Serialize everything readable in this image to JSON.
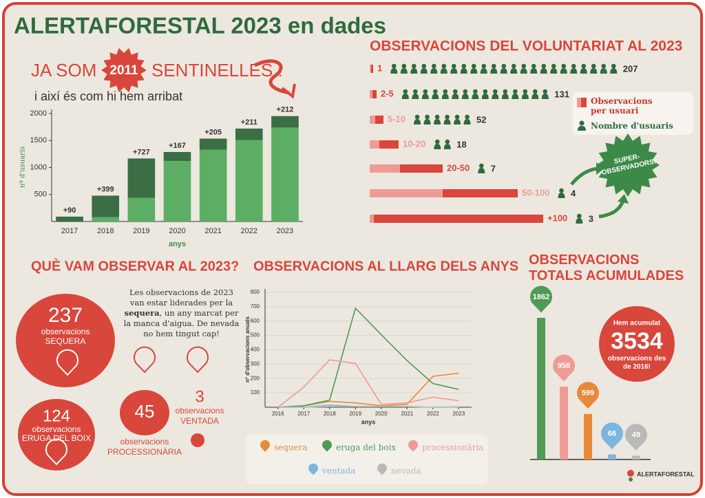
{
  "title": "ALERTAFORESTAL 2023 en dades",
  "headline": {
    "prefix": "JA SOM",
    "count": 2011,
    "suffix": "SENTINELLES !",
    "subtitle": "i així és com hi hem arribat"
  },
  "observed_2023": {
    "title": "QUÈ VAM OBSERVAR AL 2023?",
    "note": [
      "Les observacions de 2023 van estar liderades per la ",
      "sequera",
      ", un any marcat per la manca d'aigua. De nevada no hem tingut cap!"
    ],
    "items": [
      {
        "value": 237,
        "unit": "observacions",
        "label": "SEQUERA"
      },
      {
        "value": 124,
        "unit": "observacions",
        "label": "ERUGA DEL BOIX"
      },
      {
        "value": 45,
        "unit": "observacions",
        "label": "PROCESSIONÀRIA"
      },
      {
        "value": 3,
        "unit": "observacions",
        "label": "VENTADA"
      }
    ]
  },
  "footer": {
    "logo": "ALERTAFORESTAL"
  },
  "chart_data": [
    {
      "type": "stacked_bar",
      "categories": [
        "2017",
        "2018",
        "2019",
        "2020",
        "2021",
        "2022",
        "2023"
      ],
      "series": [
        {
          "color": "#5cae64",
          "values": [
            0,
            80,
            440,
            1120,
            1330,
            1510,
            1740
          ]
        },
        {
          "color": "#3b6e44",
          "values": [
            90,
            399,
            727,
            167,
            205,
            211,
            212
          ],
          "value_labels": [
            "+90",
            "+399",
            "+727",
            "+167",
            "+205",
            "+211",
            "+212"
          ]
        }
      ],
      "ylim": [
        0,
        2000
      ],
      "yticks": [
        500,
        1000,
        1500,
        2000
      ],
      "ylabel": "nº d'usuaris",
      "xlabel": "anys"
    },
    {
      "type": "pictogram",
      "title": "OBSERVACIONS DEL VOLUNTARIAT AL 2023",
      "categories": [
        "1",
        "2-5",
        "5-10",
        "10-20",
        "20-50",
        "50-100",
        "+100"
      ],
      "values": [
        207,
        131,
        52,
        18,
        7,
        4,
        3
      ],
      "color": "#2f6b3c",
      "legend": [
        "Observacions per usuari",
        "Nombre d'usuaris"
      ],
      "annotation": "SUPER-OBSERVADORS!"
    },
    {
      "type": "line",
      "title": "OBSERVACIONS AL LLARG DELS ANYS",
      "x": [
        2016,
        2017,
        2018,
        2019,
        2020,
        2021,
        2022,
        2023
      ],
      "series": [
        {
          "name": "sequera",
          "color": "#e8893a",
          "values": [
            0,
            10,
            40,
            30,
            10,
            20,
            215,
            237
          ]
        },
        {
          "name": "eruga del boix",
          "color": "#4f9a55",
          "values": [
            0,
            10,
            50,
            690,
            505,
            325,
            165,
            124
          ]
        },
        {
          "name": "processionària",
          "color": "#ef9a94",
          "values": [
            0,
            140,
            330,
            305,
            20,
            30,
            70,
            45
          ]
        },
        {
          "name": "ventada",
          "color": "#7bb6e0",
          "values": [
            0,
            0,
            15,
            5,
            5,
            5,
            0,
            3
          ]
        },
        {
          "name": "nevada",
          "color": "#b9b9b9",
          "values": [
            0,
            0,
            5,
            5,
            5,
            5,
            0,
            0
          ]
        }
      ],
      "xlim": [
        2015.5,
        2023.5
      ],
      "xticks": [
        2016,
        2017,
        2018,
        2019,
        2020,
        2021,
        2022,
        2023
      ],
      "ylim": [
        0,
        800
      ],
      "yticks": [
        100,
        200,
        300,
        400,
        500,
        600,
        700,
        800
      ],
      "ylabel": "nº d'observacions anuals",
      "xlabel": "anys",
      "grid": true,
      "legend": "bottom"
    },
    {
      "type": "bar",
      "title": "OBSERVACIONS TOTALS ACUMULADES",
      "values": [
        1862,
        958,
        599,
        66,
        49
      ],
      "colors": [
        "#4f9a55",
        "#ef9a94",
        "#e8893a",
        "#7bb6e0",
        "#b9b9b9"
      ],
      "annotation": {
        "intro": "Hem acumulat",
        "total": 3534,
        "outro": "observacions des de 2016!"
      }
    }
  ]
}
